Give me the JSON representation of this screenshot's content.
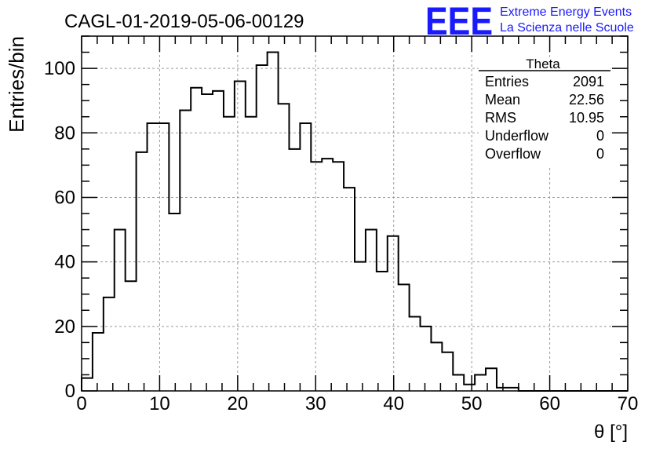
{
  "title": "CAGL-01-2019-05-06-00129",
  "logo": {
    "letters": "EEE",
    "line1": "Extreme Energy Events",
    "line2": "La Scienza nelle Scuole",
    "color": "#1a1aff"
  },
  "stats": {
    "name": "Theta",
    "rows": [
      {
        "label": "Entries",
        "value": "2091"
      },
      {
        "label": "Mean",
        "value": "22.56"
      },
      {
        "label": "RMS",
        "value": "10.95"
      },
      {
        "label": "Underflow",
        "value": "0"
      },
      {
        "label": "Overflow",
        "value": "0"
      }
    ]
  },
  "chart_data": {
    "type": "histogram",
    "xlabel": "θ [°]",
    "ylabel": "Entries/bin",
    "xlim": [
      0,
      70
    ],
    "ylim": [
      0,
      110
    ],
    "bin_width": 1.4,
    "x_ticks": [
      0,
      10,
      20,
      30,
      40,
      50,
      60,
      70
    ],
    "y_ticks": [
      0,
      20,
      40,
      60,
      80,
      100
    ],
    "grid": true,
    "values": [
      4,
      18,
      29,
      50,
      34,
      74,
      83,
      83,
      55,
      87,
      94,
      92,
      93,
      85,
      96,
      85,
      101,
      105,
      89,
      75,
      83,
      71,
      72,
      71,
      63,
      40,
      50,
      37,
      48,
      33,
      23,
      20,
      15,
      12,
      5,
      2,
      5,
      7,
      1,
      1,
      0,
      0,
      0,
      0,
      0,
      0,
      0,
      0,
      0,
      0
    ]
  }
}
